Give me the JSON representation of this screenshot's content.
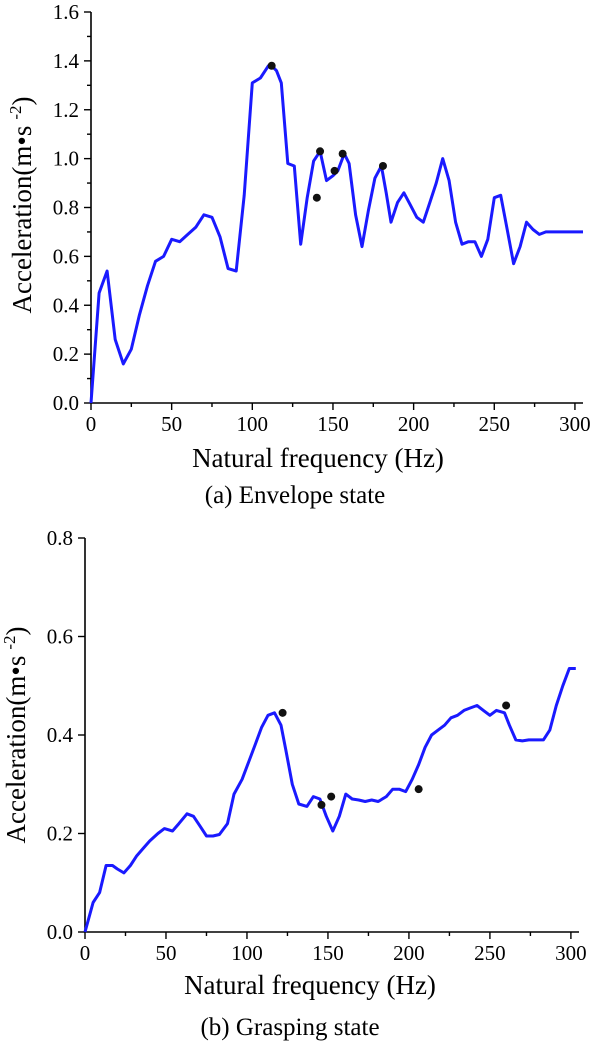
{
  "colors": {
    "line": "#1a1aff",
    "marker": "#111111",
    "axis": "#000000"
  },
  "chart_data": [
    {
      "type": "line",
      "caption": "(a) Envelope state",
      "xlabel": "Natural frequency (Hz)",
      "ylabel_main": "Acceleration(m",
      "ylabel_dot": "•",
      "ylabel_s": "s",
      "ylabel_sup": "-2",
      "ylabel_close": ")",
      "xlim": [
        0,
        305
      ],
      "ylim": [
        0,
        1.6
      ],
      "xticks": [
        0,
        50,
        100,
        150,
        200,
        250,
        300
      ],
      "xtick_labels": [
        "0",
        "50",
        "100",
        "150",
        "200",
        "250",
        "300"
      ],
      "yticks": [
        0,
        0.2,
        0.4,
        0.6,
        0.8,
        1.0,
        1.2,
        1.4,
        1.6
      ],
      "ytick_labels": [
        "0.0",
        "0.2",
        "0.4",
        "0.6",
        "0.8",
        "1.0",
        "1.2",
        "1.4",
        "1.6"
      ],
      "grid": false,
      "series": [
        {
          "x": [
            0,
            5,
            10,
            15,
            20,
            25,
            30,
            35,
            40,
            45,
            50,
            55,
            60,
            65,
            70,
            75,
            80,
            85,
            90,
            95,
            100,
            105,
            110,
            112,
            115,
            118,
            122,
            126,
            130,
            134,
            138,
            142,
            146,
            150,
            153,
            157,
            160,
            164,
            168,
            172,
            176,
            180,
            183,
            186,
            190,
            194,
            198,
            202,
            206,
            210,
            214,
            218,
            222,
            226,
            230,
            234,
            238,
            242,
            246,
            250,
            254,
            258,
            262,
            266,
            270,
            274,
            278,
            282,
            287,
            292,
            297,
            302,
            305
          ],
          "y": [
            0.0,
            0.45,
            0.54,
            0.26,
            0.16,
            0.22,
            0.36,
            0.48,
            0.58,
            0.6,
            0.67,
            0.66,
            0.69,
            0.72,
            0.77,
            0.76,
            0.68,
            0.55,
            0.54,
            0.85,
            1.31,
            1.33,
            1.38,
            1.38,
            1.36,
            1.31,
            0.98,
            0.97,
            0.65,
            0.84,
            0.99,
            1.03,
            0.91,
            0.93,
            0.95,
            1.02,
            0.98,
            0.77,
            0.64,
            0.79,
            0.92,
            0.97,
            0.86,
            0.74,
            0.82,
            0.86,
            0.81,
            0.76,
            0.74,
            0.82,
            0.9,
            1.0,
            0.91,
            0.74,
            0.65,
            0.66,
            0.66,
            0.6,
            0.67,
            0.84,
            0.85,
            0.71,
            0.57,
            0.64,
            0.74,
            0.71,
            0.69,
            0.7,
            0.7,
            0.7,
            0.7,
            0.7,
            0.7
          ]
        }
      ],
      "markers": {
        "x": [
          112,
          140,
          142,
          151,
          156,
          181
        ],
        "y": [
          1.38,
          0.84,
          1.03,
          0.95,
          1.02,
          0.97
        ]
      }
    },
    {
      "type": "line",
      "caption": "(b) Grasping state",
      "xlabel": "Natural frequency (Hz)",
      "ylabel_main": "Acceleration(m",
      "ylabel_dot": "•",
      "ylabel_s": "s",
      "ylabel_sup": "-2",
      "ylabel_close": ")",
      "xlim": [
        0,
        305
      ],
      "ylim": [
        0,
        0.8
      ],
      "xticks": [
        0,
        50,
        100,
        150,
        200,
        250,
        300
      ],
      "xtick_labels": [
        "0",
        "50",
        "100",
        "150",
        "200",
        "250",
        "300"
      ],
      "yticks": [
        0,
        0.2,
        0.4,
        0.6,
        0.8
      ],
      "ytick_labels": [
        "0.0",
        "0.2",
        "0.4",
        "0.6",
        "0.8"
      ],
      "grid": false,
      "series": [
        {
          "x": [
            0,
            5,
            9,
            13,
            17,
            20,
            24,
            28,
            32,
            36,
            40,
            45,
            49,
            54,
            58,
            63,
            67,
            71,
            75,
            79,
            83,
            88,
            92,
            97,
            101,
            105,
            109,
            113,
            117,
            121,
            124,
            128,
            132,
            137,
            141,
            145,
            149,
            153,
            157,
            161,
            165,
            169,
            173,
            177,
            181,
            186,
            190,
            194,
            198,
            202,
            206,
            210,
            214,
            218,
            222,
            226,
            230,
            234,
            238,
            242,
            246,
            250,
            254,
            259,
            262,
            266,
            270,
            274,
            278,
            283,
            287,
            291,
            295,
            299,
            303
          ],
          "y": [
            0.0,
            0.06,
            0.08,
            0.135,
            0.135,
            0.128,
            0.12,
            0.135,
            0.155,
            0.17,
            0.185,
            0.2,
            0.21,
            0.205,
            0.22,
            0.24,
            0.235,
            0.215,
            0.195,
            0.195,
            0.198,
            0.22,
            0.28,
            0.31,
            0.345,
            0.38,
            0.415,
            0.44,
            0.445,
            0.42,
            0.37,
            0.3,
            0.26,
            0.255,
            0.275,
            0.27,
            0.235,
            0.205,
            0.235,
            0.28,
            0.27,
            0.268,
            0.265,
            0.268,
            0.265,
            0.275,
            0.29,
            0.29,
            0.285,
            0.31,
            0.34,
            0.375,
            0.4,
            0.41,
            0.42,
            0.435,
            0.44,
            0.45,
            0.455,
            0.46,
            0.45,
            0.44,
            0.45,
            0.445,
            0.42,
            0.39,
            0.388,
            0.39,
            0.39,
            0.39,
            0.41,
            0.46,
            0.5,
            0.535,
            0.535
          ]
        }
      ],
      "markers": {
        "x": [
          122,
          146,
          152,
          206,
          260
        ],
        "y": [
          0.445,
          0.258,
          0.275,
          0.29,
          0.46
        ]
      }
    }
  ]
}
